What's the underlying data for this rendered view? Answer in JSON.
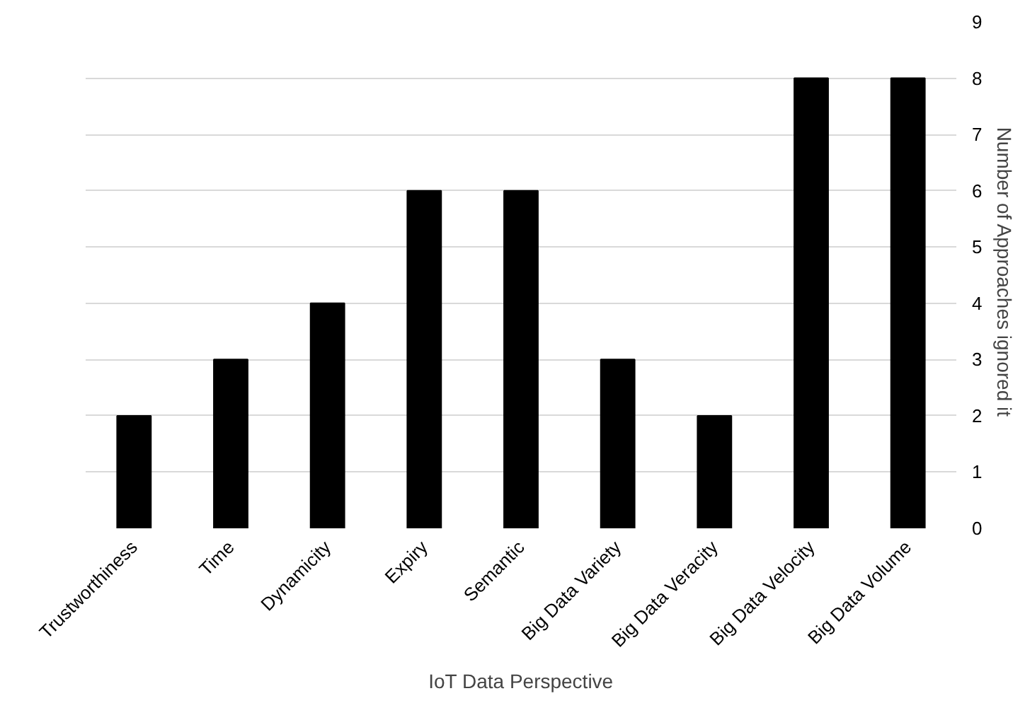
{
  "chart_data": {
    "type": "bar",
    "xlabel": "IoT Data Perspective",
    "ylabel": "Number of  Approaches ignored it",
    "categories": [
      "Trustworthiness",
      "Time",
      "Dynamicity",
      "Expiry",
      "Semantic",
      "Big Data Variety",
      "Big Data Veracity",
      "Big Data Velocity",
      "Big Data Volume"
    ],
    "values": [
      2,
      3,
      4,
      6,
      6,
      3,
      2,
      8,
      8
    ],
    "color": "#000000",
    "ylim": [
      0,
      9
    ],
    "yticks": [
      0,
      1,
      2,
      3,
      4,
      5,
      6,
      7,
      8,
      9
    ],
    "grid": "y"
  }
}
